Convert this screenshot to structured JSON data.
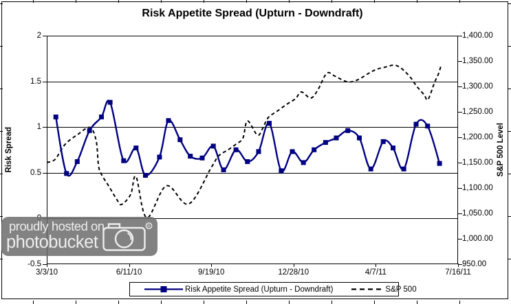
{
  "title": "Risk Appetite Spread (Upturn - Downdraft)",
  "watermark": {
    "line1": "proudly hosted on",
    "line2": "photobucket",
    "registered_mark": "R"
  },
  "chart_data": {
    "type": "line",
    "title": "Risk Appetite Spread (Upturn - Downdraft)",
    "grid": "horizontal-on",
    "background": "#ffffff",
    "axis_color": "#000000",
    "x_axis": {
      "tick_labels": [
        "3/3/10",
        "6/11/10",
        "9/19/10",
        "12/28/10",
        "4/7/11",
        "7/16/11"
      ],
      "note": "series point x values are fractions 0-1 along this axis"
    },
    "left_axis": {
      "title": "Risk Spread",
      "min": -0.5,
      "max": 2,
      "tick_labels": [
        "2",
        "1.5",
        "1",
        "0.5",
        "0",
        "-0.5"
      ]
    },
    "right_axis": {
      "title": "S&P 500 Level",
      "min": 950,
      "max": 1400,
      "tick_labels": [
        "1,400.00",
        "1,350.00",
        "1,300.00",
        "1,250.00",
        "1,200.00",
        "1,150.00",
        "1,100.00",
        "1,050.00",
        "1,000.00",
        "950.00"
      ]
    },
    "legend": {
      "position": "bottom"
    },
    "series": [
      {
        "name": "Risk Appetite Spread (Upturn - Downdraft)",
        "axis": "left",
        "color": "#000080",
        "line_style": "solid",
        "marker": "square",
        "points": [
          [
            0.022,
            1.11
          ],
          [
            0.048,
            0.49
          ],
          [
            0.074,
            0.62
          ],
          [
            0.104,
            0.96
          ],
          [
            0.133,
            1.11
          ],
          [
            0.154,
            1.27
          ],
          [
            0.187,
            0.63
          ],
          [
            0.217,
            0.77
          ],
          [
            0.24,
            0.47
          ],
          [
            0.274,
            0.67
          ],
          [
            0.296,
            1.07
          ],
          [
            0.324,
            0.86
          ],
          [
            0.349,
            0.68
          ],
          [
            0.378,
            0.66
          ],
          [
            0.405,
            0.79
          ],
          [
            0.43,
            0.53
          ],
          [
            0.46,
            0.75
          ],
          [
            0.488,
            0.62
          ],
          [
            0.515,
            0.73
          ],
          [
            0.541,
            1.04
          ],
          [
            0.57,
            0.52
          ],
          [
            0.597,
            0.73
          ],
          [
            0.624,
            0.61
          ],
          [
            0.65,
            0.75
          ],
          [
            0.678,
            0.83
          ],
          [
            0.704,
            0.88
          ],
          [
            0.732,
            0.96
          ],
          [
            0.76,
            0.88
          ],
          [
            0.788,
            0.54
          ],
          [
            0.818,
            0.84
          ],
          [
            0.842,
            0.77
          ],
          [
            0.868,
            0.54
          ],
          [
            0.898,
            1.03
          ],
          [
            0.926,
            1.01
          ],
          [
            0.955,
            0.6
          ]
        ]
      },
      {
        "name": "S&P 500",
        "axis": "right",
        "color": "#000000",
        "line_style": "dashed",
        "marker": "none",
        "points": [
          [
            0.0,
            1150
          ],
          [
            0.02,
            1156
          ],
          [
            0.045,
            1186
          ],
          [
            0.075,
            1205
          ],
          [
            0.105,
            1219
          ],
          [
            0.12,
            1193
          ],
          [
            0.126,
            1143
          ],
          [
            0.134,
            1125
          ],
          [
            0.151,
            1103
          ],
          [
            0.171,
            1076
          ],
          [
            0.182,
            1067
          ],
          [
            0.204,
            1087
          ],
          [
            0.217,
            1122
          ],
          [
            0.243,
            1041
          ],
          [
            0.291,
            1104
          ],
          [
            0.345,
            1068
          ],
          [
            0.4,
            1140
          ],
          [
            0.418,
            1163
          ],
          [
            0.441,
            1175
          ],
          [
            0.46,
            1186
          ],
          [
            0.477,
            1198
          ],
          [
            0.488,
            1232
          ],
          [
            0.512,
            1204
          ],
          [
            0.525,
            1217
          ],
          [
            0.538,
            1238
          ],
          [
            0.56,
            1251
          ],
          [
            0.584,
            1265
          ],
          [
            0.605,
            1276
          ],
          [
            0.619,
            1289
          ],
          [
            0.642,
            1277
          ],
          [
            0.659,
            1293
          ],
          [
            0.681,
            1326
          ],
          [
            0.701,
            1320
          ],
          [
            0.731,
            1309
          ],
          [
            0.756,
            1313
          ],
          [
            0.783,
            1326
          ],
          [
            0.803,
            1334
          ],
          [
            0.828,
            1339
          ],
          [
            0.843,
            1342
          ],
          [
            0.856,
            1339
          ],
          [
            0.87,
            1330
          ],
          [
            0.885,
            1317
          ],
          [
            0.896,
            1304
          ],
          [
            0.906,
            1294
          ],
          [
            0.918,
            1283
          ],
          [
            0.927,
            1274
          ],
          [
            0.943,
            1308
          ],
          [
            0.952,
            1324
          ],
          [
            0.958,
            1339
          ]
        ]
      }
    ]
  }
}
